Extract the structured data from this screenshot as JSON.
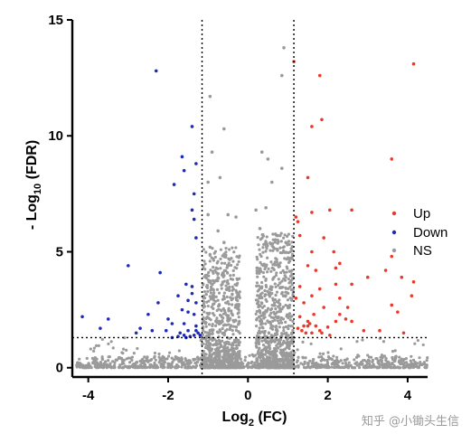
{
  "chart_data": {
    "type": "scatter",
    "title": "",
    "xlabel": "Log",
    "xlabel_sub": "2",
    "xlabel_suffix": " (FC)",
    "ylabel_prefix": "- Log",
    "ylabel_sub": "10",
    "ylabel_suffix": " (FDR)",
    "xlim": [
      -4.4,
      4.5
    ],
    "ylim": [
      -0.4,
      15
    ],
    "x_ticks": [
      -4,
      -2,
      0,
      2,
      4
    ],
    "y_ticks": [
      0,
      5,
      10,
      15
    ],
    "x_tick_labels": [
      "-4",
      "-2",
      "0",
      "2",
      "4"
    ],
    "y_tick_labels": [
      "0",
      "5",
      "10",
      "15"
    ],
    "thresholds": {
      "log2fc": [
        -1.15,
        1.15
      ],
      "neg_log10_fdr": 1.3
    },
    "grid": false,
    "legend_position": "right",
    "series": [
      {
        "name": "Up",
        "color": "#e8392b",
        "points": [
          [
            4.15,
            13.1
          ],
          [
            1.15,
            13.2
          ],
          [
            1.8,
            12.6
          ],
          [
            1.85,
            10.7
          ],
          [
            1.6,
            10.4
          ],
          [
            3.6,
            9.0
          ],
          [
            1.5,
            8.2
          ],
          [
            1.2,
            6.5
          ],
          [
            1.25,
            6.3
          ],
          [
            1.6,
            6.7
          ],
          [
            2.05,
            6.8
          ],
          [
            2.6,
            6.8
          ],
          [
            1.3,
            5.7
          ],
          [
            1.9,
            5.6
          ],
          [
            1.6,
            5.0
          ],
          [
            2.15,
            5.0
          ],
          [
            3.6,
            4.8
          ],
          [
            2.2,
            4.3
          ],
          [
            2.3,
            4.5
          ],
          [
            1.7,
            4.2
          ],
          [
            1.5,
            4.4
          ],
          [
            3.0,
            3.9
          ],
          [
            3.45,
            4.2
          ],
          [
            2.2,
            3.6
          ],
          [
            2.6,
            3.6
          ],
          [
            1.3,
            3.5
          ],
          [
            1.8,
            3.4
          ],
          [
            4.15,
            3.7
          ],
          [
            3.85,
            3.9
          ],
          [
            4.1,
            3.1
          ],
          [
            2.3,
            3.0
          ],
          [
            1.6,
            3.1
          ],
          [
            1.2,
            3.0
          ],
          [
            1.4,
            2.8
          ],
          [
            2.5,
            2.6
          ],
          [
            1.9,
            2.6
          ],
          [
            2.6,
            2.0
          ],
          [
            3.6,
            2.7
          ],
          [
            3.75,
            2.4
          ],
          [
            1.3,
            2.2
          ],
          [
            1.5,
            2.0
          ],
          [
            1.55,
            1.9
          ],
          [
            1.7,
            1.8
          ],
          [
            1.8,
            1.6
          ],
          [
            2.0,
            1.75
          ],
          [
            2.2,
            2.0
          ],
          [
            2.45,
            2.1
          ],
          [
            1.35,
            1.6
          ],
          [
            1.45,
            1.5
          ],
          [
            1.6,
            1.5
          ],
          [
            2.9,
            1.6
          ],
          [
            3.3,
            1.6
          ],
          [
            1.25,
            1.7
          ],
          [
            1.85,
            1.5
          ],
          [
            2.05,
            1.4
          ],
          [
            1.65,
            2.3
          ],
          [
            3.9,
            1.5
          ],
          [
            1.4,
            1.8
          ],
          [
            1.5,
            1.8
          ],
          [
            2.3,
            2.3
          ]
        ]
      },
      {
        "name": "Down",
        "color": "#1f2bb8",
        "points": [
          [
            -2.3,
            12.8
          ],
          [
            -1.4,
            10.4
          ],
          [
            -1.3,
            8.8
          ],
          [
            -1.65,
            9.1
          ],
          [
            -1.6,
            8.5
          ],
          [
            -1.85,
            7.9
          ],
          [
            -1.35,
            7.5
          ],
          [
            -1.4,
            6.8
          ],
          [
            -1.35,
            6.4
          ],
          [
            -1.3,
            5.6
          ],
          [
            -3.0,
            4.4
          ],
          [
            -2.2,
            4.1
          ],
          [
            -1.55,
            3.6
          ],
          [
            -1.4,
            3.5
          ],
          [
            -1.4,
            3.2
          ],
          [
            -1.75,
            3.1
          ],
          [
            -1.5,
            2.9
          ],
          [
            -1.3,
            2.8
          ],
          [
            -2.25,
            2.8
          ],
          [
            -1.65,
            2.5
          ],
          [
            -1.5,
            2.4
          ],
          [
            -1.35,
            2.3
          ],
          [
            -4.15,
            2.2
          ],
          [
            -3.5,
            2.1
          ],
          [
            -2.5,
            2.3
          ],
          [
            -2.0,
            2.1
          ],
          [
            -1.9,
            1.9
          ],
          [
            -1.6,
            1.9
          ],
          [
            -1.3,
            1.8
          ],
          [
            -3.7,
            1.7
          ],
          [
            -2.7,
            1.7
          ],
          [
            -2.8,
            1.5
          ],
          [
            -2.05,
            1.6
          ],
          [
            -1.7,
            1.5
          ],
          [
            -1.5,
            1.6
          ],
          [
            -1.25,
            1.5
          ],
          [
            -1.6,
            1.4
          ],
          [
            -1.45,
            1.35
          ],
          [
            -1.35,
            1.4
          ],
          [
            -1.75,
            1.35
          ],
          [
            -1.2,
            1.4
          ],
          [
            -1.9,
            1.3
          ],
          [
            -2.4,
            1.6
          ],
          [
            -1.55,
            1.3
          ],
          [
            -1.3,
            1.6
          ]
        ]
      },
      {
        "name": "NS",
        "color": "#9a9a9a",
        "points": [
          [
            0.9,
            13.8
          ],
          [
            0.85,
            12.6
          ],
          [
            -0.95,
            11.7
          ],
          [
            -0.6,
            10.3
          ],
          [
            -0.9,
            9.3
          ],
          [
            0.35,
            9.3
          ],
          [
            0.5,
            9.0
          ],
          [
            -0.7,
            8.2
          ],
          [
            0.85,
            8.6
          ],
          [
            0.6,
            8.0
          ],
          [
            -1.0,
            8.0
          ],
          [
            0.2,
            6.8
          ],
          [
            0.45,
            6.9
          ],
          [
            -0.5,
            6.6
          ],
          [
            -0.3,
            6.5
          ],
          [
            -1.0,
            6.6
          ],
          [
            0.3,
            6.0
          ],
          [
            0.75,
            5.7
          ],
          [
            0.95,
            5.4
          ],
          [
            -0.75,
            5.9
          ],
          [
            -0.95,
            5.2
          ],
          [
            -0.6,
            5.4
          ]
        ],
        "bands": [
          {
            "x_range": [
              -1.15,
              -0.2
            ],
            "y_range": [
              0,
              5.2
            ],
            "count": 780
          },
          {
            "x_range": [
              0.2,
              1.15
            ],
            "y_range": [
              0,
              5.8
            ],
            "count": 780
          },
          {
            "x_range": [
              -4.3,
              4.5
            ],
            "y_range": [
              0,
              0.5
            ],
            "count": 720
          },
          {
            "x_range": [
              -4.3,
              4.5
            ],
            "y_range": [
              0,
              1.3
            ],
            "count": 160
          }
        ]
      }
    ]
  },
  "watermark": "知乎 @小锄头生信"
}
